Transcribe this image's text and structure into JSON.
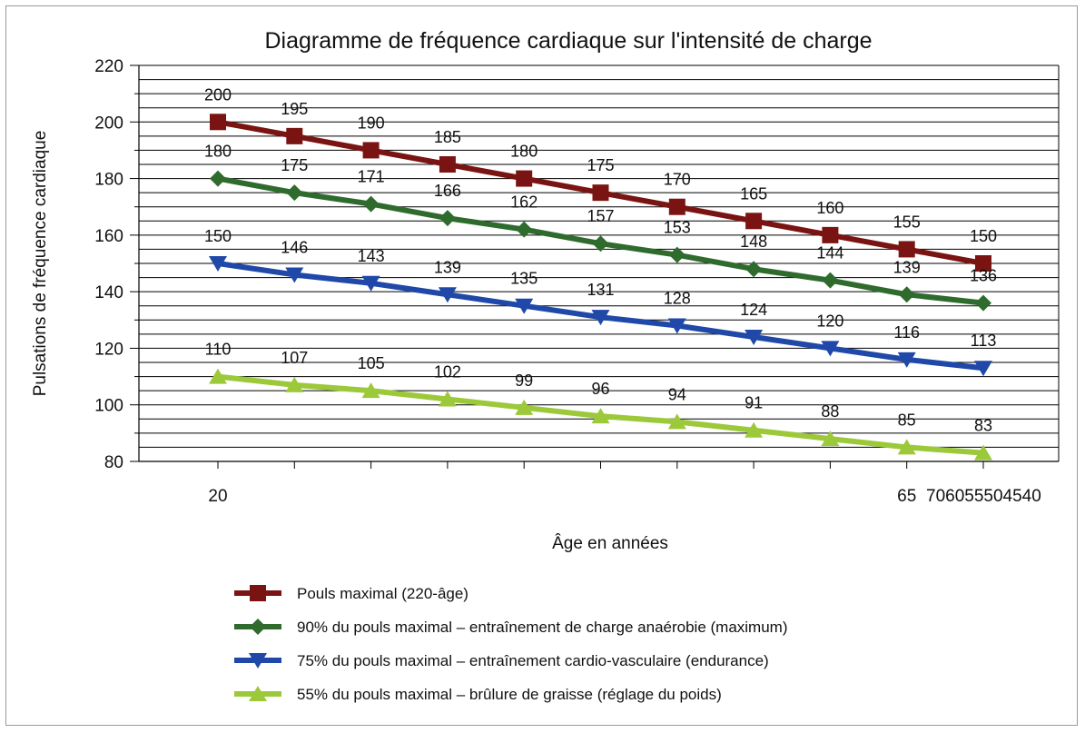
{
  "chart_data": {
    "type": "line",
    "title": "Diagramme de fréquence cardiaque sur l'intensité de charge",
    "xlabel": "Âge en années",
    "ylabel": "Pulsations de fréquence cardiaque",
    "ylim": [
      80,
      220
    ],
    "y_ticks": [
      80,
      100,
      120,
      140,
      160,
      180,
      200,
      220
    ],
    "x_tick_labels": [
      "20",
      "",
      "",
      "",
      "",
      "",
      "",
      "",
      "",
      "65",
      "706055504540"
    ],
    "grid": true,
    "legend_position": "bottom",
    "series": [
      {
        "name": "Pouls maximal (220-âge)",
        "color": "#7a1412",
        "marker": "square",
        "values": [
          200,
          195,
          190,
          185,
          180,
          175,
          170,
          165,
          160,
          155,
          150
        ]
      },
      {
        "name": "90% du pouls maximal – entraînement de charge anaérobie (maximum)",
        "color": "#2f6b2d",
        "marker": "diamond",
        "values": [
          180,
          175,
          171,
          166,
          162,
          157,
          153,
          148,
          144,
          139,
          136
        ]
      },
      {
        "name": "75% du pouls maximal – entraînement cardio-vasculaire (endurance)",
        "color": "#1f48a8",
        "marker": "triangle-down",
        "values": [
          150,
          146,
          143,
          139,
          135,
          131,
          128,
          124,
          120,
          116,
          113
        ]
      },
      {
        "name": "55% du pouls maximal – brûlure de graisse (réglage du poids)",
        "color": "#9cc93a",
        "marker": "triangle-up",
        "values": [
          110,
          107,
          105,
          102,
          99,
          96,
          94,
          91,
          88,
          85,
          83
        ]
      }
    ]
  }
}
